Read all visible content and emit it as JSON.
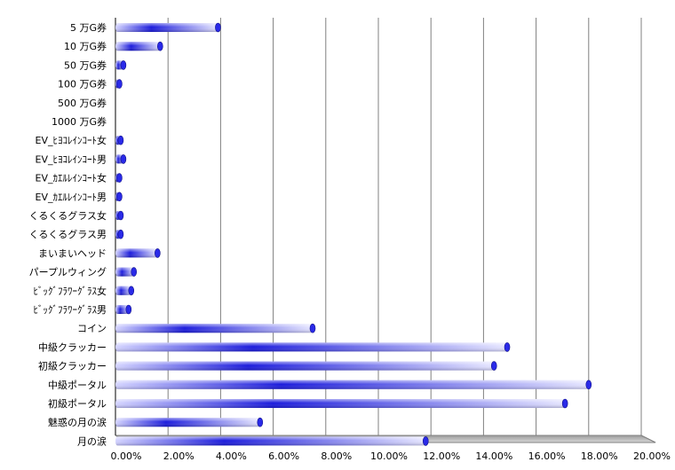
{
  "chart_data": {
    "type": "bar",
    "orientation": "horizontal",
    "categories": [
      "5 万G券",
      "10 万G券",
      "50 万G券",
      "100 万G券",
      "500 万G券",
      "1000 万G券",
      "EV_ﾋﾖｺﾚｲﾝｺｰﾄ女",
      "EV_ﾋﾖｺﾚｲﾝｺｰﾄ男",
      "EV_ｶｴﾙﾚｲﾝｺｰﾄ女",
      "EV_ｶｴﾙﾚｲﾝｺｰﾄ男",
      "くるくるグラス女",
      "くるくるグラス男",
      "まいまいヘッド",
      "パープルウィング",
      "ﾋﾞｯｸﾞﾌﾗﾜｰｸﾞﾗｽ女",
      "ﾋﾞｯｸﾞﾌﾗﾜｰｸﾞﾗｽ男",
      "コイン",
      "中級クラッカー",
      "初級クラッカー",
      "中級ポータル",
      "初級ポータル",
      "魅惑の月の涙",
      "月の涙"
    ],
    "values": [
      3.9,
      1.7,
      0.3,
      0.15,
      0,
      0,
      0.2,
      0.3,
      0.15,
      0.15,
      0.2,
      0.2,
      1.6,
      0.7,
      0.6,
      0.5,
      7.5,
      14.9,
      14.4,
      18.0,
      17.1,
      5.5,
      11.8
    ],
    "xlim": [
      0,
      20
    ],
    "xticks": [
      0,
      2,
      4,
      6,
      8,
      10,
      12,
      14,
      16,
      18,
      20
    ],
    "xtick_labels": [
      "0.00%",
      "2.00%",
      "4.00%",
      "6.00%",
      "8.00%",
      "10.00%",
      "12.00%",
      "14.00%",
      "16.00%",
      "18.00%",
      "20.00%"
    ],
    "grid": true,
    "colors": {
      "bar_dark": "#1a1adc",
      "bar_light": "#dcdcff",
      "grid": "#808080",
      "axis": "#000000"
    }
  }
}
